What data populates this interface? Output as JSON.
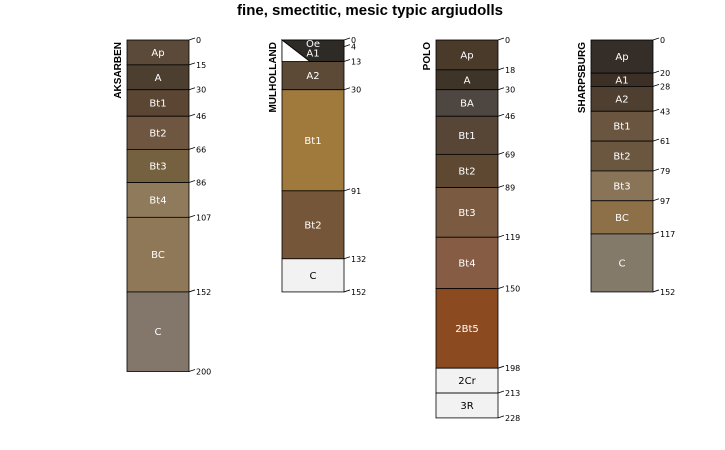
{
  "title": "fine, smectitic, mesic typic argiudolls",
  "depth_units": "cm",
  "profiles": [
    {
      "name": "AKSARBEN",
      "horizons": [
        {
          "name": "Ap",
          "top": 0,
          "bottom": 15,
          "color": "#5b4a3a",
          "text": "#ffffff"
        },
        {
          "name": "A",
          "top": 15,
          "bottom": 30,
          "color": "#4d3f30",
          "text": "#ffffff"
        },
        {
          "name": "Bt1",
          "top": 30,
          "bottom": 46,
          "color": "#5a4632",
          "text": "#ffffff"
        },
        {
          "name": "Bt2",
          "top": 46,
          "bottom": 66,
          "color": "#6e5640",
          "text": "#ffffff"
        },
        {
          "name": "Bt3",
          "top": 66,
          "bottom": 86,
          "color": "#75603f",
          "text": "#ffffff"
        },
        {
          "name": "Bt4",
          "top": 86,
          "bottom": 107,
          "color": "#8f7a5c",
          "text": "#ffffff"
        },
        {
          "name": "BC",
          "top": 107,
          "bottom": 152,
          "color": "#8e7858",
          "text": "#ffffff"
        },
        {
          "name": "C",
          "top": 152,
          "bottom": 200,
          "color": "#82776a",
          "text": "#ffffff"
        }
      ]
    },
    {
      "name": "MULHOLLAND",
      "horizons": [
        {
          "name": "Oe",
          "top": 0,
          "bottom": 4,
          "color": "#2e2a26",
          "text": "#ffffff"
        },
        {
          "name": "A1",
          "top": 4,
          "bottom": 13,
          "color": "#ffffff",
          "text": "#000000"
        },
        {
          "name": "A2",
          "top": 13,
          "bottom": 30,
          "color": "#5c4a36",
          "text": "#ffffff"
        },
        {
          "name": "Bt1",
          "top": 30,
          "bottom": 91,
          "color": "#9f7a3c",
          "text": "#ffffff"
        },
        {
          "name": "Bt2",
          "top": 91,
          "bottom": 132,
          "color": "#765638",
          "text": "#ffffff"
        },
        {
          "name": "C",
          "top": 132,
          "bottom": 152,
          "color": "#f2f2f2",
          "text": "#000000"
        }
      ]
    },
    {
      "name": "POLO",
      "horizons": [
        {
          "name": "Ap",
          "top": 0,
          "bottom": 18,
          "color": "#4a3a2a",
          "text": "#ffffff"
        },
        {
          "name": "A",
          "top": 18,
          "bottom": 30,
          "color": "#3f3428",
          "text": "#ffffff"
        },
        {
          "name": "BA",
          "top": 30,
          "bottom": 46,
          "color": "#4e4640",
          "text": "#ffffff"
        },
        {
          "name": "Bt1",
          "top": 46,
          "bottom": 69,
          "color": "#574636",
          "text": "#ffffff"
        },
        {
          "name": "Bt2",
          "top": 69,
          "bottom": 89,
          "color": "#5e4832",
          "text": "#ffffff"
        },
        {
          "name": "Bt3",
          "top": 89,
          "bottom": 119,
          "color": "#7a5a40",
          "text": "#ffffff"
        },
        {
          "name": "Bt4",
          "top": 119,
          "bottom": 150,
          "color": "#875c44",
          "text": "#ffffff"
        },
        {
          "name": "2Bt5",
          "top": 150,
          "bottom": 198,
          "color": "#8b4a20",
          "text": "#ffffff"
        },
        {
          "name": "2Cr",
          "top": 198,
          "bottom": 213,
          "color": "#f2f2f2",
          "text": "#000000"
        },
        {
          "name": "3R",
          "top": 213,
          "bottom": 228,
          "color": "#f2f2f2",
          "text": "#000000"
        }
      ]
    },
    {
      "name": "SHARPSBURG",
      "horizons": [
        {
          "name": "Ap",
          "top": 0,
          "bottom": 20,
          "color": "#342d28",
          "text": "#ffffff"
        },
        {
          "name": "A1",
          "top": 20,
          "bottom": 28,
          "color": "#3c3026",
          "text": "#ffffff"
        },
        {
          "name": "A2",
          "top": 28,
          "bottom": 43,
          "color": "#4e3f30",
          "text": "#ffffff"
        },
        {
          "name": "Bt1",
          "top": 43,
          "bottom": 61,
          "color": "#6a5640",
          "text": "#ffffff"
        },
        {
          "name": "Bt2",
          "top": 61,
          "bottom": 79,
          "color": "#6b5640",
          "text": "#ffffff"
        },
        {
          "name": "Bt3",
          "top": 79,
          "bottom": 97,
          "color": "#8a7458",
          "text": "#ffffff"
        },
        {
          "name": "BC",
          "top": 97,
          "bottom": 117,
          "color": "#8d7048",
          "text": "#ffffff"
        },
        {
          "name": "C",
          "top": 117,
          "bottom": 152,
          "color": "#837a6a",
          "text": "#ffffff"
        }
      ]
    }
  ]
}
